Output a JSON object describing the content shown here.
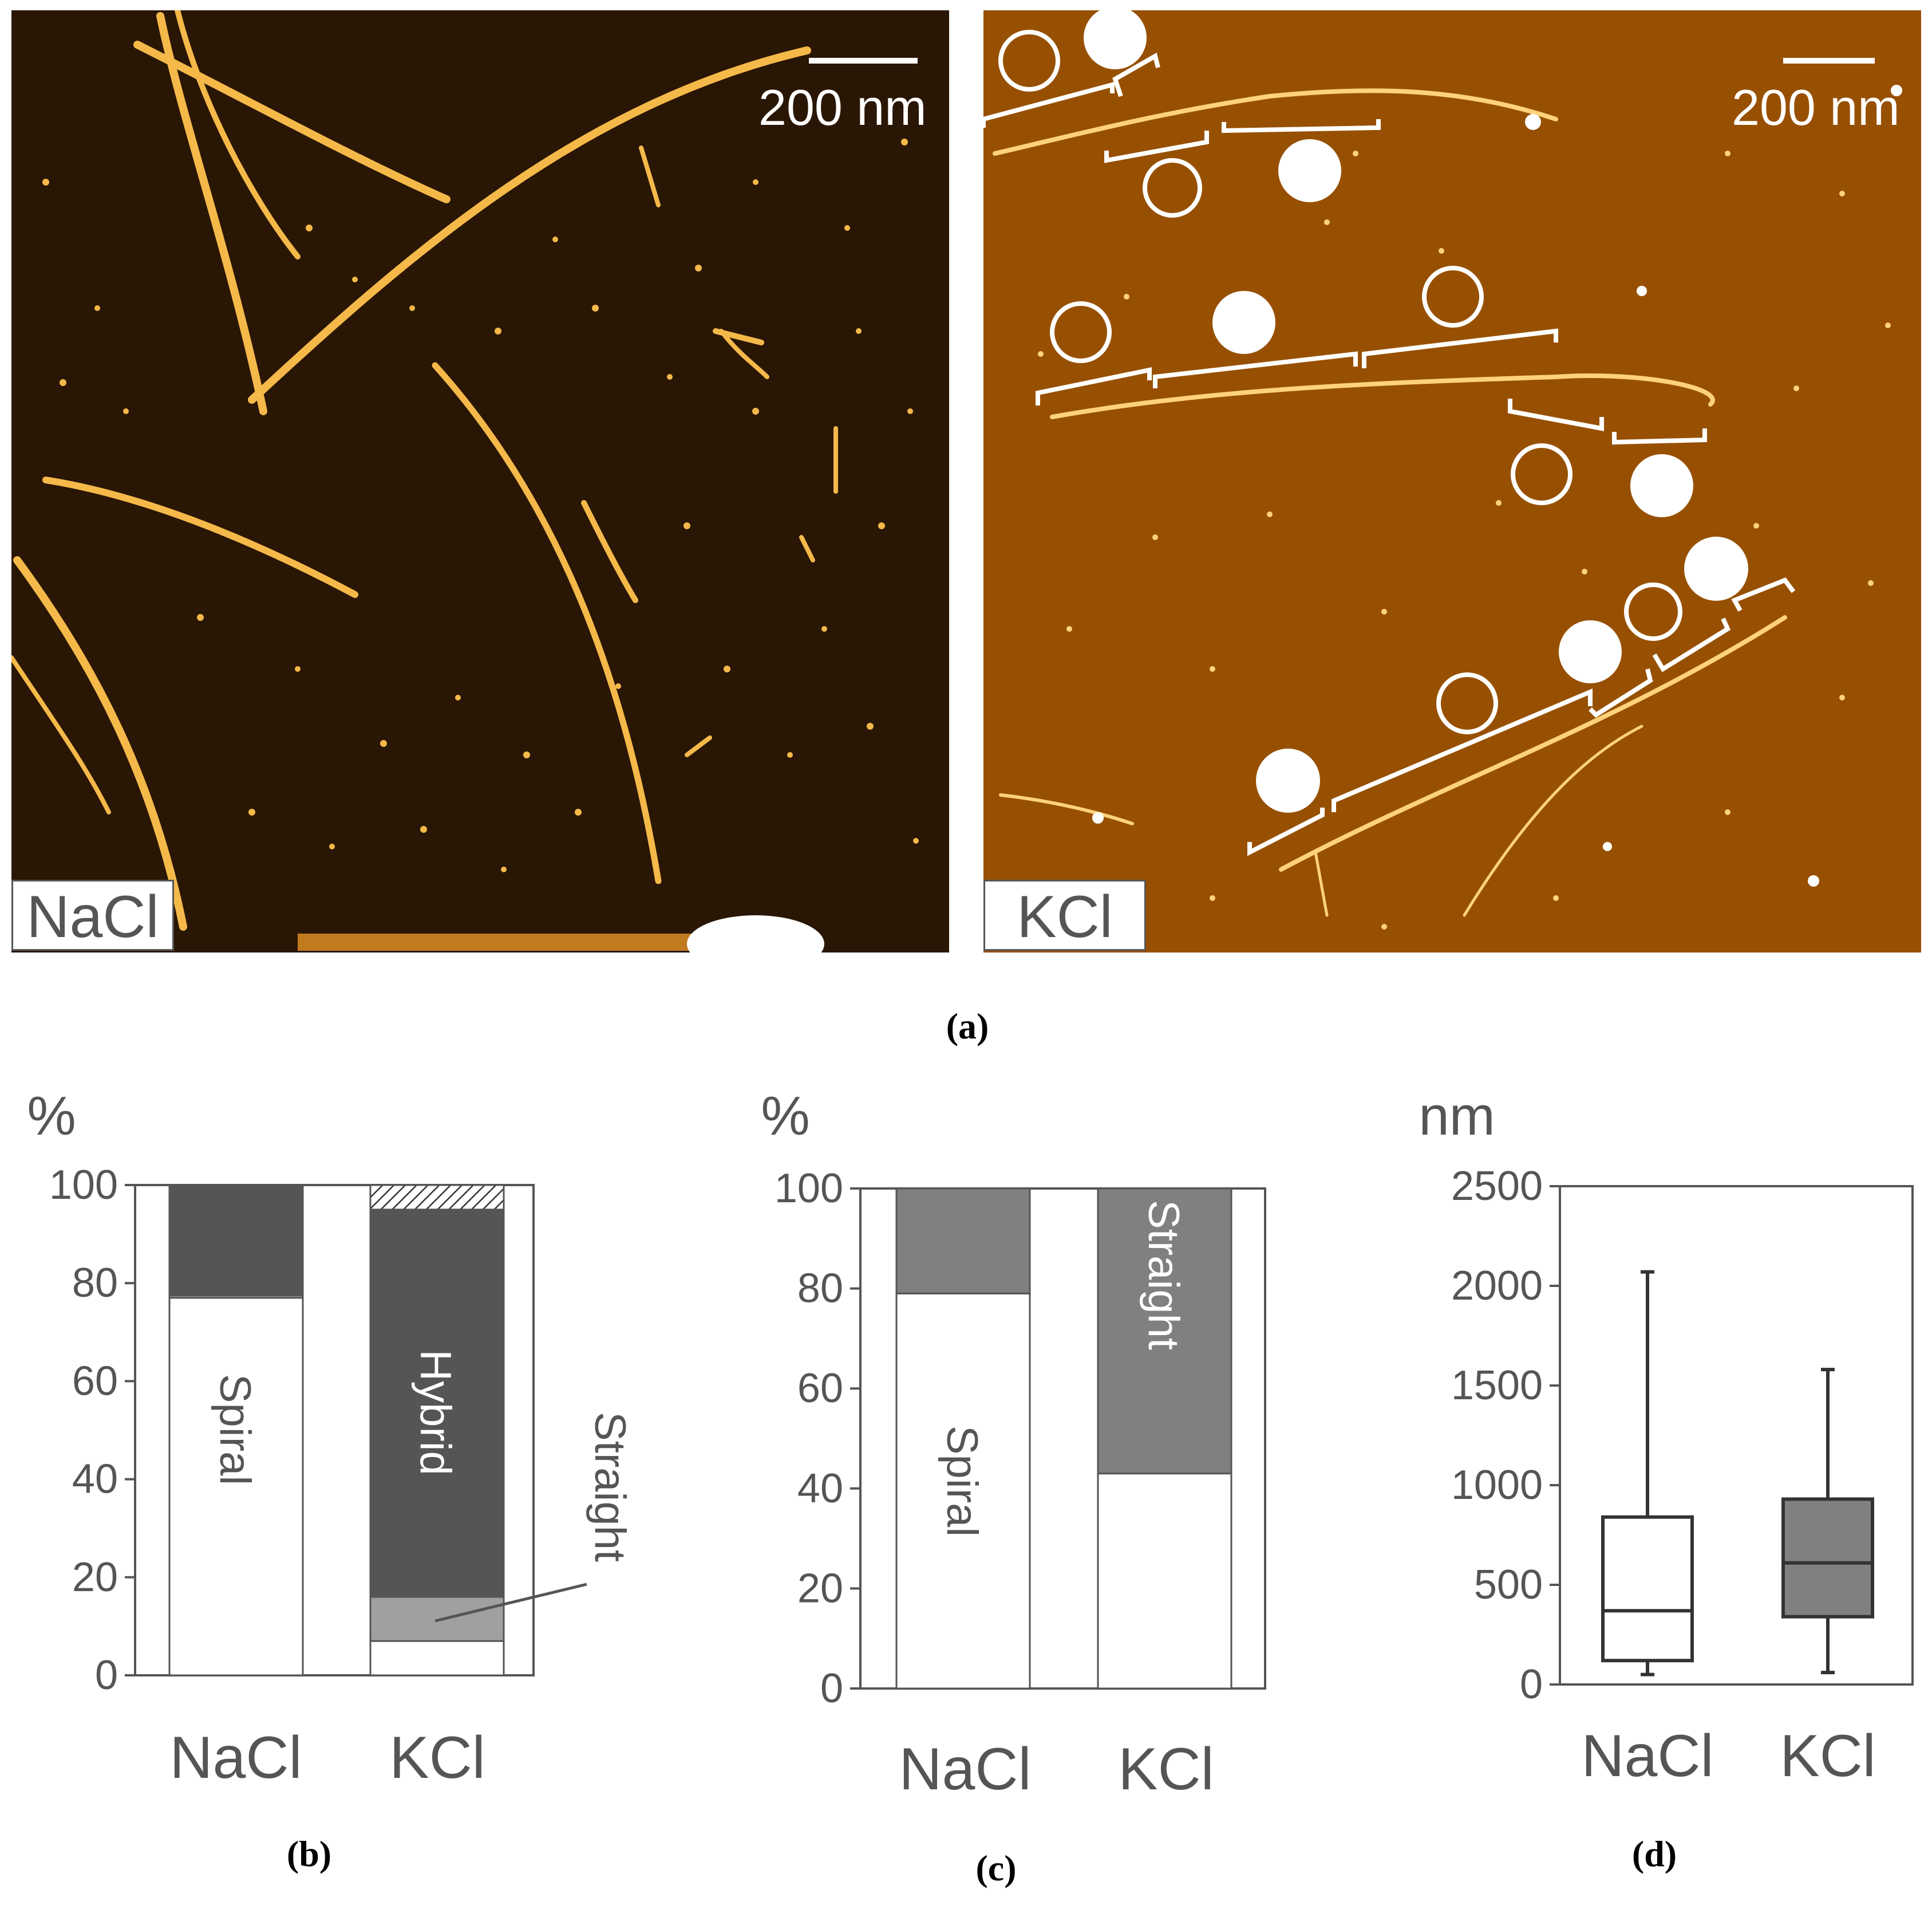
{
  "panel_a": {
    "caption": "(a)",
    "left": {
      "label": "NaCl",
      "scale_bar": "200 nm"
    },
    "right": {
      "label": "KCl",
      "scale_bar": "200 nm"
    }
  },
  "chart_b": {
    "caption": "(b)",
    "ylabel": "%",
    "yticks": [
      "100",
      "80",
      "60",
      "40",
      "20",
      "0"
    ],
    "categories": [
      "NaCl",
      "KCl"
    ],
    "segment_labels": {
      "spiral": "Spiral",
      "hybrid": "Hybrid",
      "straight": "Straight"
    }
  },
  "chart_c": {
    "caption": "(c)",
    "ylabel": "%",
    "yticks": [
      "100",
      "80",
      "60",
      "40",
      "20",
      "0"
    ],
    "categories": [
      "NaCl",
      "KCl"
    ],
    "segment_labels": {
      "spiral": "Spiral",
      "straight": "Straight"
    }
  },
  "chart_d": {
    "caption": "(d)",
    "ylabel": "nm",
    "yticks": [
      "2500",
      "2000",
      "1500",
      "1000",
      "500",
      "0"
    ],
    "categories": [
      "NaCl",
      "KCl"
    ]
  },
  "colors": {
    "afm_bg": "#2a1604",
    "afm_fiber": "#f5b94a",
    "hybrid": "#555555",
    "straight_b": "#a0a0a0",
    "straight_c": "#808080",
    "kcl_box": "#808080",
    "axis": "#555555"
  },
  "chart_data": [
    {
      "type": "bar",
      "stacked": true,
      "ylim": [
        0,
        100
      ],
      "categories": [
        "NaCl",
        "KCl"
      ],
      "series": [
        {
          "name": "Spiral",
          "values": [
            77,
            7
          ]
        },
        {
          "name": "Straight",
          "values": [
            0.5,
            9
          ]
        },
        {
          "name": "Hybrid",
          "values": [
            22.5,
            79
          ]
        },
        {
          "name": "",
          "values": [
            0,
            5
          ]
        }
      ]
    },
    {
      "type": "bar",
      "stacked": true,
      "ylim": [
        0,
        100
      ],
      "categories": [
        "NaCl",
        "KCl"
      ],
      "series": [
        {
          "name": "Spiral",
          "values": [
            79,
            43
          ]
        },
        {
          "name": "Straight",
          "values": [
            21,
            57
          ]
        }
      ]
    },
    {
      "type": "box",
      "ylim": [
        0,
        2500
      ],
      "categories": [
        "NaCl",
        "KCl"
      ],
      "boxes": [
        {
          "min": 50,
          "q1": 120,
          "median": 370,
          "q3": 840,
          "max": 2070
        },
        {
          "min": 60,
          "q1": 340,
          "median": 610,
          "q3": 930,
          "max": 1580
        }
      ]
    }
  ]
}
